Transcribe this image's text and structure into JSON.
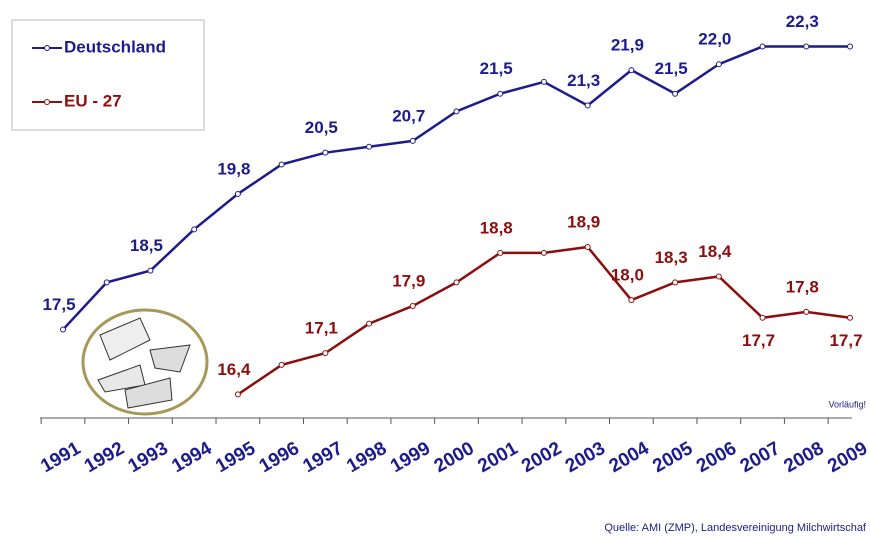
{
  "chart_data": {
    "type": "line",
    "categories": [
      "1991",
      "1992",
      "1993",
      "1994",
      "1995",
      "1996",
      "1997",
      "1998",
      "1999",
      "2000",
      "2001",
      "2002",
      "2003",
      "2004",
      "2005",
      "2006",
      "2007",
      "2008",
      "2009"
    ],
    "series": [
      {
        "name": "Deutschland",
        "color": "#1c1c8c",
        "values": [
          17.5,
          18.3,
          18.5,
          19.2,
          19.8,
          20.3,
          20.5,
          20.6,
          20.7,
          21.2,
          21.5,
          21.7,
          21.3,
          21.9,
          21.5,
          22.0,
          22.3,
          22.3,
          22.3
        ],
        "value_labels": [
          "17,5",
          null,
          "18,5",
          null,
          "19,8",
          null,
          "20,5",
          null,
          "20,7",
          null,
          "21,5",
          null,
          "21,3",
          "21,9",
          "21,5",
          "22,0",
          null,
          "22,3",
          null
        ]
      },
      {
        "name": "EU - 27",
        "color": "#8b0f0f",
        "values": [
          null,
          null,
          null,
          null,
          16.4,
          16.9,
          17.1,
          17.6,
          17.9,
          18.3,
          18.8,
          18.8,
          18.9,
          18.0,
          18.3,
          18.4,
          17.7,
          17.8,
          17.7
        ],
        "value_labels": [
          null,
          null,
          null,
          null,
          "16,4",
          null,
          "17,1",
          null,
          "17,9",
          null,
          "18,8",
          null,
          "18,9",
          "18,0",
          "18,3",
          "18,4",
          "17,7",
          "17,8",
          "17,7"
        ]
      }
    ],
    "ylim": [
      16.0,
      22.75
    ],
    "annotations": [
      "Vorläufig!",
      "Quelle:  AMI (ZMP), Landesvereinigung Milchwirtschaf"
    ]
  }
}
